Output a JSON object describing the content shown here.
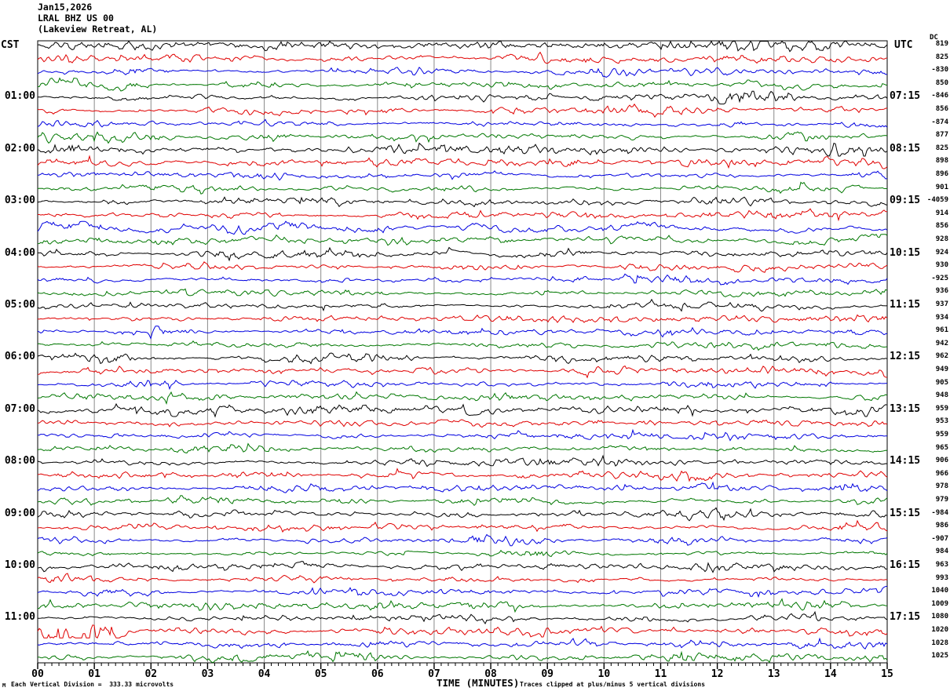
{
  "header": {
    "date": "Jan15,2026",
    "station": "LRAL BHZ US 00",
    "location": "(Lakeview Retreat, AL)"
  },
  "axes": {
    "left_tz": "CST",
    "right_tz": "UTC",
    "dc_header": "DC",
    "x_title": "TIME (MINUTES)",
    "x_ticks": [
      "00",
      "01",
      "02",
      "03",
      "04",
      "05",
      "06",
      "07",
      "08",
      "09",
      "10",
      "11",
      "12",
      "13",
      "14",
      "15"
    ]
  },
  "footer": {
    "tiny_mark": "M",
    "scale_note": "Each Vertical Division =  333.33 microvolts",
    "clip_note": "Traces clipped at plus/minus 5 vertical divisions"
  },
  "colors": {
    "trace_cycle": [
      "#000000",
      "#e00000",
      "#0000e0",
      "#007700"
    ],
    "grid": "#8a8a8a",
    "frame": "#000000"
  },
  "rows": [
    {
      "dc": "819",
      "bursts": [
        [
          0.84,
          0.96,
          2.2
        ]
      ]
    },
    {
      "dc": "825"
    },
    {
      "dc": "-830"
    },
    {
      "dc": "850"
    },
    {
      "dc": "-846",
      "left": "01:00",
      "right": "07:15",
      "bursts": [
        [
          0.78,
          0.9,
          2.4
        ]
      ]
    },
    {
      "dc": "856"
    },
    {
      "dc": "-874"
    },
    {
      "dc": "877"
    },
    {
      "dc": "825",
      "left": "02:00",
      "right": "08:15",
      "bursts": [
        [
          0.0,
          0.05,
          4.0
        ],
        [
          0.92,
          1.0,
          2.4
        ]
      ]
    },
    {
      "dc": "898"
    },
    {
      "dc": "896",
      "hf": 2.4
    },
    {
      "dc": "901"
    },
    {
      "dc": "-4059",
      "left": "03:00",
      "right": "09:15"
    },
    {
      "dc": "914"
    },
    {
      "dc": "856",
      "lf": 4.2,
      "hf": 2.2
    },
    {
      "dc": "928",
      "lf": 3.0
    },
    {
      "dc": "924",
      "left": "04:00",
      "right": "10:15",
      "lf": 2.2
    },
    {
      "dc": "930"
    },
    {
      "dc": "-925",
      "lf": 2.0
    },
    {
      "dc": "936"
    },
    {
      "dc": "937",
      "left": "05:00",
      "right": "11:15"
    },
    {
      "dc": "934"
    },
    {
      "dc": "961"
    },
    {
      "dc": "942"
    },
    {
      "dc": "962",
      "left": "06:00",
      "right": "12:15"
    },
    {
      "dc": "949"
    },
    {
      "dc": "905"
    },
    {
      "dc": "948"
    },
    {
      "dc": "959",
      "left": "07:00",
      "right": "13:15"
    },
    {
      "dc": "953"
    },
    {
      "dc": "959"
    },
    {
      "dc": "965"
    },
    {
      "dc": "906",
      "left": "08:00",
      "right": "14:15"
    },
    {
      "dc": "966"
    },
    {
      "dc": "978"
    },
    {
      "dc": "979"
    },
    {
      "dc": "-984",
      "left": "09:00",
      "right": "15:15"
    },
    {
      "dc": "986"
    },
    {
      "dc": "-907"
    },
    {
      "dc": "984"
    },
    {
      "dc": "963",
      "left": "10:00",
      "right": "16:15"
    },
    {
      "dc": "993"
    },
    {
      "dc": "1040"
    },
    {
      "dc": "1009"
    },
    {
      "dc": "1080",
      "left": "11:00",
      "right": "17:15"
    },
    {
      "dc": "1020",
      "bursts": [
        [
          0.0,
          0.12,
          5.0
        ]
      ]
    },
    {
      "dc": "1028",
      "hf": 2.4
    },
    {
      "dc": "1025",
      "bursts": [
        [
          0.74,
          0.84,
          2.2
        ]
      ]
    }
  ],
  "chart_data": {
    "type": "line",
    "title": "LRAL BHZ US 00 (Lakeview Retreat, AL) helicorder, Jan15,2026",
    "xlabel": "TIME (MINUTES)",
    "x_range_minutes": [
      0,
      15
    ],
    "row_count": 48,
    "rows_per_hour": 4,
    "row_duration_minutes": 15,
    "trace_color_cycle": [
      "black",
      "red",
      "blue",
      "green"
    ],
    "left_axis_timezone": "CST",
    "right_axis_timezone": "UTC",
    "left_hour_labels": [
      "01:00",
      "02:00",
      "03:00",
      "04:00",
      "05:00",
      "06:00",
      "07:00",
      "08:00",
      "09:00",
      "10:00",
      "11:00"
    ],
    "right_hour_labels": [
      "07:15",
      "08:15",
      "09:15",
      "10:15",
      "11:15",
      "12:15",
      "13:15",
      "14:15",
      "15:15",
      "16:15",
      "17:15"
    ],
    "dc_offsets": [
      819,
      825,
      -830,
      850,
      -846,
      856,
      -874,
      877,
      825,
      898,
      896,
      901,
      -4059,
      914,
      856,
      928,
      924,
      930,
      -925,
      936,
      937,
      934,
      961,
      942,
      962,
      949,
      905,
      948,
      959,
      953,
      959,
      965,
      906,
      966,
      978,
      979,
      -984,
      986,
      -907,
      984,
      963,
      993,
      1040,
      1009,
      1080,
      1020,
      1028,
      1025
    ],
    "scale_note": "Each Vertical Division =  333.33 microvolts",
    "clip_note": "Traces clipped at plus/minus 5 vertical divisions",
    "waveform": "continuous ambient seismic noise traces; individual sample values not resolvable from plot"
  }
}
